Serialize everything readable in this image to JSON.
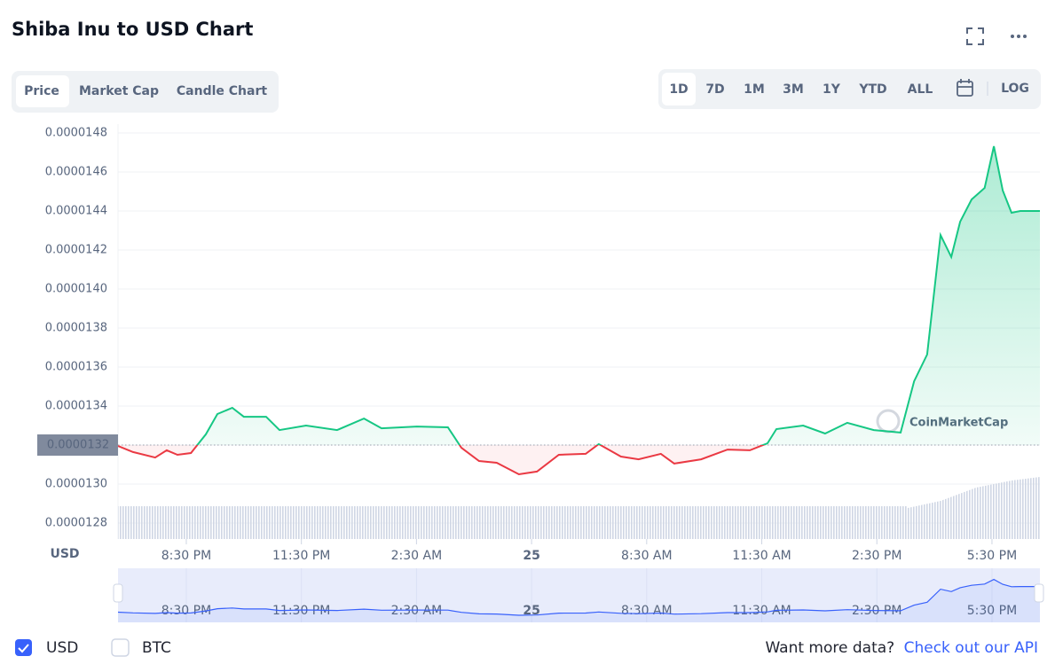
{
  "header": {
    "title": "Shiba Inu to USD Chart"
  },
  "tabs": [
    "Price",
    "Market Cap",
    "Candle Chart"
  ],
  "active_tab": 0,
  "ranges": [
    "1D",
    "7D",
    "1M",
    "3M",
    "1Y",
    "YTD",
    "ALL"
  ],
  "active_range": 0,
  "log": "LOG",
  "chart_data": {
    "type": "line",
    "y_axis_label": "USD",
    "watermark": "CoinMarketCap",
    "up_color": "#16c784",
    "down_color": "#ea3943",
    "current_price": {
      "value": 1.32e-05,
      "label": "0.0000132"
    },
    "x": [
      18.72,
      19.11,
      19.69,
      19.99,
      20.27,
      20.62,
      21.01,
      21.31,
      21.7,
      22.0,
      22.58,
      22.93,
      23.62,
      24.43,
      25.13,
      25.59,
      26.51,
      27.32,
      27.67,
      28.13,
      28.59,
      29.17,
      29.64,
      30.21,
      30.91,
      31.25,
      31.83,
      32.29,
      32.87,
      33.22,
      33.92,
      34.61,
      35.19,
      35.65,
      35.88,
      36.58,
      37.15,
      37.73,
      38.42,
      39.12,
      39.47,
      39.81,
      40.16,
      40.44,
      40.67,
      40.97,
      41.31,
      41.55,
      41.78,
      42.01,
      42.24,
      42.75
    ],
    "values": [
      1.3195e-05,
      1.3164e-05,
      1.3136e-05,
      1.3173e-05,
      1.315e-05,
      1.3159e-05,
      1.3255e-05,
      1.3359e-05,
      1.3391e-05,
      1.3345e-05,
      1.3345e-05,
      1.3277e-05,
      1.33e-05,
      1.3277e-05,
      1.3336e-05,
      1.3286e-05,
      1.3295e-05,
      1.3291e-05,
      1.3186e-05,
      1.3118e-05,
      1.3109e-05,
      1.305e-05,
      1.3064e-05,
      1.315e-05,
      1.3155e-05,
      1.3205e-05,
      1.3141e-05,
      1.3127e-05,
      1.3155e-05,
      1.3105e-05,
      1.3127e-05,
      1.3177e-05,
      1.3173e-05,
      1.3209e-05,
      1.3282e-05,
      1.33e-05,
      1.3259e-05,
      1.3314e-05,
      1.3277e-05,
      1.3264e-05,
      1.3527e-05,
      1.3664e-05,
      1.4277e-05,
      1.4164e-05,
      1.4345e-05,
      1.4459e-05,
      1.4518e-05,
      1.4732e-05,
      1.4505e-05,
      1.4391e-05,
      1.44e-05,
      1.44e-05
    ],
    "xlim": [
      18.72,
      42.75
    ],
    "xticks": [
      {
        "value": 20.5,
        "label": "8:30 PM"
      },
      {
        "value": 23.5,
        "label": "11:30 PM"
      },
      {
        "value": 26.5,
        "label": "2:30 AM"
      },
      {
        "value": 29.5,
        "label": "25"
      },
      {
        "value": 32.5,
        "label": "8:30 AM"
      },
      {
        "value": 35.5,
        "label": "11:30 AM"
      },
      {
        "value": 38.5,
        "label": "2:30 PM"
      },
      {
        "value": 41.5,
        "label": "5:30 PM"
      }
    ],
    "ylim": [
      1.28e-05,
      1.48e-05
    ],
    "yticks": [
      {
        "value": 1.28e-05,
        "label": "0.0000128"
      },
      {
        "value": 1.3e-05,
        "label": "0.0000130"
      },
      {
        "value": 1.32e-05,
        "label": "0.0000132"
      },
      {
        "value": 1.34e-05,
        "label": "0.0000134"
      },
      {
        "value": 1.36e-05,
        "label": "0.0000136"
      },
      {
        "value": 1.38e-05,
        "label": "0.0000138"
      },
      {
        "value": 1.4e-05,
        "label": "0.0000140"
      },
      {
        "value": 1.42e-05,
        "label": "0.0000142"
      },
      {
        "value": 1.44e-05,
        "label": "0.0000144"
      },
      {
        "value": 1.46e-05,
        "label": "0.0000146"
      },
      {
        "value": 1.48e-05,
        "label": "0.0000148"
      }
    ],
    "grid": true
  },
  "footer": {
    "currencies": [
      {
        "label": "USD",
        "checked": true
      },
      {
        "label": "BTC",
        "checked": false
      }
    ],
    "prompt": "Want more data?",
    "link": "Check out our API"
  }
}
